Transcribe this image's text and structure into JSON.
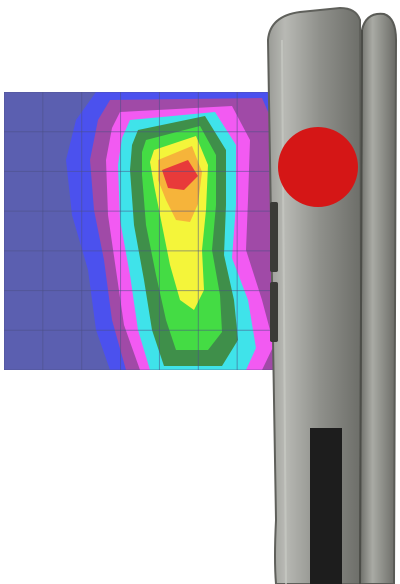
{
  "figure": {
    "description_kind": "sar-heatmap-beside-phone",
    "colors": {
      "background": "#ffffff",
      "heatmap_levels": [
        "#5b5fb0",
        "#4b51ee",
        "#a04aa7",
        "#f25af2",
        "#3fe3ea",
        "#3f8f4a",
        "#44dc44",
        "#f4f53a",
        "#f6b43a",
        "#e83a3a"
      ],
      "grid_line": "#4b4f86",
      "phone_body": "#8a8a86",
      "phone_edge": "#55554f",
      "phone_highlight": "#c9cbc5",
      "antenna_marker": "#d51616",
      "slot": "#1d1d1d"
    },
    "grid": {
      "columns": 7,
      "rows": 7,
      "visible": true
    },
    "icons": [
      "phone-device-icon",
      "antenna-marker-icon"
    ]
  }
}
